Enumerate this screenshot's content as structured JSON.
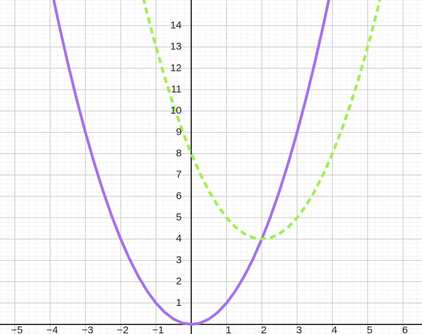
{
  "chart_data": {
    "type": "line",
    "x": [
      -4,
      -3.75,
      -3.5,
      -3.25,
      -3,
      -2.75,
      -2.5,
      -2.25,
      -2,
      -1.75,
      -1.5,
      -1.25,
      -1,
      -0.75,
      -0.5,
      -0.25,
      0,
      0.25,
      0.5,
      0.75,
      1,
      1.25,
      1.5,
      1.75,
      2,
      2.25,
      2.5,
      2.75,
      3,
      3.25,
      3.5,
      3.75,
      4,
      4.25,
      4.5,
      4.75,
      5,
      5.25,
      5.5
    ],
    "series": [
      {
        "color": "#a66ef0",
        "dashed": false,
        "values": [
          16,
          14.0625,
          12.25,
          10.5625,
          9,
          7.5625,
          6.25,
          5.0625,
          4,
          3.0625,
          2.25,
          1.5625,
          1,
          0.5625,
          0.25,
          0.0625,
          0,
          0.0625,
          0.25,
          0.5625,
          1,
          1.5625,
          2.25,
          3.0625,
          4,
          5.0625,
          6.25,
          7.5625,
          9,
          10.5625,
          12.25,
          14.0625,
          16,
          null,
          null,
          null,
          null,
          null,
          null
        ]
      },
      {
        "color": "#9ef04a",
        "dashed": true,
        "values": [
          null,
          null,
          null,
          null,
          null,
          null,
          null,
          null,
          null,
          null,
          16.25,
          14.5625,
          13,
          11.5625,
          10.25,
          9.0625,
          8,
          7.0625,
          6.25,
          5.5625,
          5,
          4.5625,
          4.25,
          4.0625,
          4,
          4.0625,
          4.25,
          4.5625,
          5,
          5.5625,
          6.25,
          7.0625,
          8,
          9.0625,
          10.25,
          11.5625,
          13,
          14.5625,
          16.25
        ]
      }
    ],
    "xlim": [
      -5.42,
      6.54
    ],
    "ylim": [
      -0.45,
      15.2
    ],
    "xticks": [
      {
        "value": -5,
        "label": "−5"
      },
      {
        "value": -4,
        "label": "−4"
      },
      {
        "value": -3,
        "label": "−3"
      },
      {
        "value": -2,
        "label": "−2"
      },
      {
        "value": -1,
        "label": "−1"
      },
      1,
      2,
      3,
      4,
      5,
      6
    ],
    "yticks": [
      1,
      2,
      3,
      4,
      5,
      6,
      7,
      8,
      9,
      10,
      11,
      12,
      13,
      14
    ],
    "grid": true
  }
}
